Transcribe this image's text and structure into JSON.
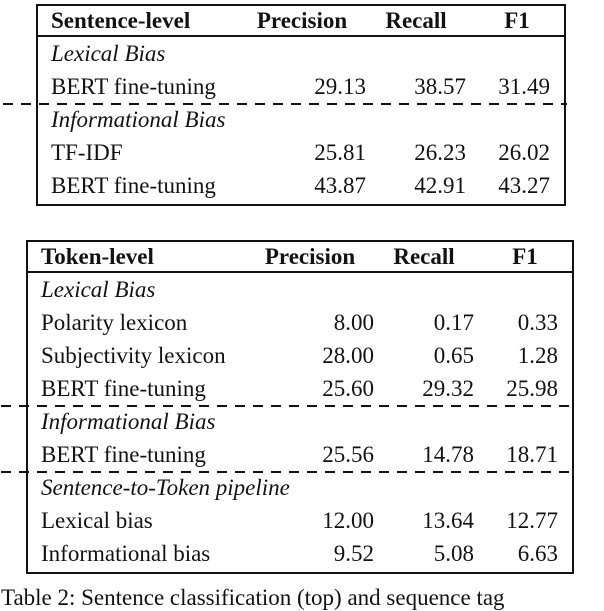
{
  "colors": {
    "background": "#ffffff",
    "text": "#121212",
    "rule": "#121212"
  },
  "caption": {
    "text": "Table 2: Sentence classification (top) and sequence tag"
  },
  "tables": [
    {
      "id": "sentence-level",
      "header": {
        "label": "Sentence-level",
        "cols": [
          "Precision",
          "Recall",
          "F1"
        ]
      },
      "rows": [
        {
          "type": "section",
          "label": "Lexical Bias"
        },
        {
          "type": "data",
          "label": "BERT fine-tuning",
          "values": [
            "29.13",
            "38.57",
            "31.49"
          ]
        },
        {
          "type": "section",
          "label": "Informational Bias"
        },
        {
          "type": "data",
          "label": "TF-IDF",
          "values": [
            "25.81",
            "26.23",
            "26.02"
          ]
        },
        {
          "type": "data",
          "label": "BERT fine-tuning",
          "values": [
            "43.87",
            "42.91",
            "43.27"
          ]
        }
      ]
    },
    {
      "id": "token-level",
      "header": {
        "label": "Token-level",
        "cols": [
          "Precision",
          "Recall",
          "F1"
        ]
      },
      "rows": [
        {
          "type": "section",
          "label": "Lexical Bias"
        },
        {
          "type": "data",
          "label": "Polarity lexicon",
          "values": [
            "8.00",
            "0.17",
            "0.33"
          ]
        },
        {
          "type": "data",
          "label": "Subjectivity lexicon",
          "values": [
            "28.00",
            "0.65",
            "1.28"
          ]
        },
        {
          "type": "data",
          "label": "BERT fine-tuning",
          "values": [
            "25.60",
            "29.32",
            "25.98"
          ]
        },
        {
          "type": "section",
          "label": "Informational Bias"
        },
        {
          "type": "data",
          "label": "BERT fine-tuning",
          "values": [
            "25.56",
            "14.78",
            "18.71"
          ]
        },
        {
          "type": "section",
          "label": "Sentence-to-Token pipeline"
        },
        {
          "type": "data",
          "label": "Lexical bias",
          "values": [
            "12.00",
            "13.64",
            "12.77"
          ]
        },
        {
          "type": "data",
          "label": "Informational bias",
          "values": [
            "9.52",
            "5.08",
            "6.63"
          ]
        }
      ]
    }
  ]
}
